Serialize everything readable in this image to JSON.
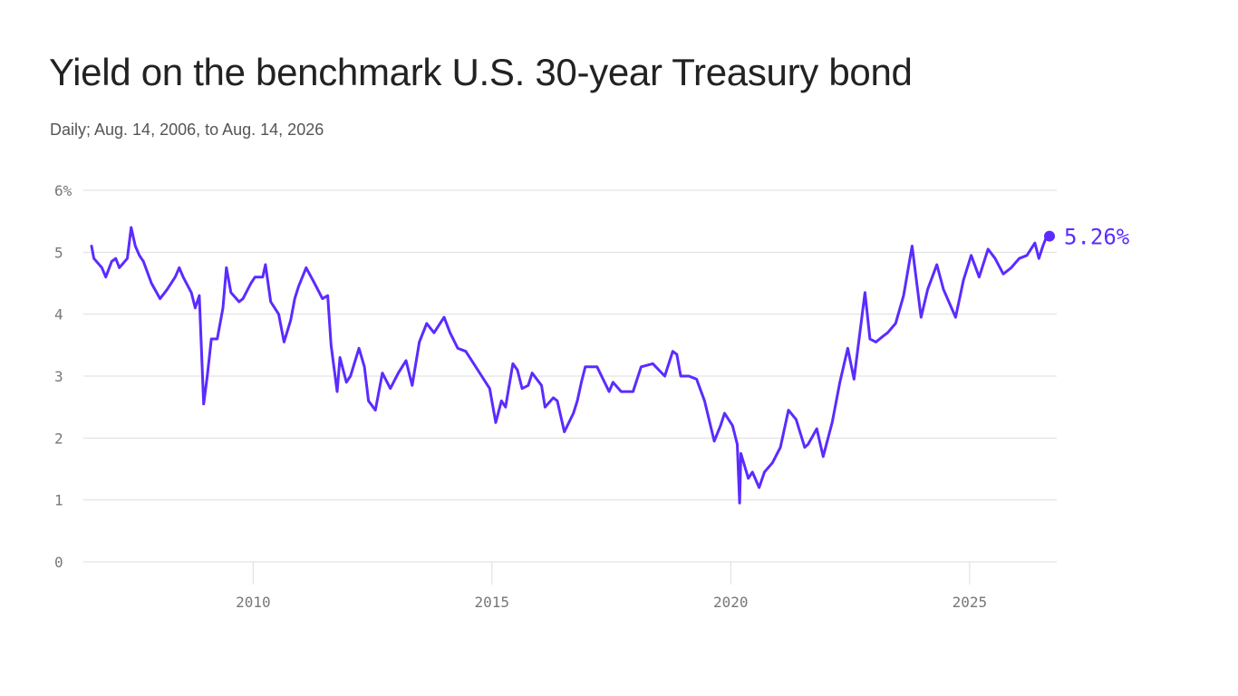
{
  "colors": {
    "accent": "#5b2bff",
    "grid": "#dddddd",
    "text": "#222222",
    "subtext": "#555555",
    "tick": "#777777"
  },
  "chart_data": {
    "type": "line",
    "title": "Yield on the benchmark U.S. 30-year Treasury bond",
    "subtitle": "Daily; Aug. 14, 2006, to Aug. 14, 2026",
    "xlabel": "",
    "ylabel": "",
    "xlim": [
      "2006-08-14",
      "2026-08-14"
    ],
    "ylim": [
      0,
      6
    ],
    "grid": true,
    "y_ticks": [
      {
        "value": 0,
        "label": "0"
      },
      {
        "value": 1,
        "label": "1"
      },
      {
        "value": 2,
        "label": "2"
      },
      {
        "value": 3,
        "label": "3"
      },
      {
        "value": 4,
        "label": "4"
      },
      {
        "value": 5,
        "label": "5"
      },
      {
        "value": 6,
        "label": "6%"
      }
    ],
    "x_ticks": [
      {
        "value": "2010-01-01",
        "label": "2010"
      },
      {
        "value": "2015-01-01",
        "label": "2015"
      },
      {
        "value": "2020-01-01",
        "label": "2020"
      },
      {
        "value": "2025-01-01",
        "label": "2025"
      }
    ],
    "end_label": "5.26%",
    "end_point": {
      "x": "2026-08-14",
      "y": 5.26
    },
    "series": [
      {
        "points": [
          [
            "2006-08-14",
            5.1
          ],
          [
            "2006-09-01",
            4.9
          ],
          [
            "2006-11-01",
            4.75
          ],
          [
            "2006-12-01",
            4.6
          ],
          [
            "2007-01-15",
            4.85
          ],
          [
            "2007-02-15",
            4.9
          ],
          [
            "2007-03-15",
            4.75
          ],
          [
            "2007-05-15",
            4.9
          ],
          [
            "2007-06-13",
            5.4
          ],
          [
            "2007-07-15",
            5.1
          ],
          [
            "2007-08-15",
            4.95
          ],
          [
            "2007-09-15",
            4.85
          ],
          [
            "2007-11-15",
            4.5
          ],
          [
            "2008-01-20",
            4.25
          ],
          [
            "2008-03-15",
            4.4
          ],
          [
            "2008-05-15",
            4.6
          ],
          [
            "2008-06-15",
            4.75
          ],
          [
            "2008-07-15",
            4.6
          ],
          [
            "2008-09-15",
            4.35
          ],
          [
            "2008-10-15",
            4.1
          ],
          [
            "2008-11-15",
            4.3
          ],
          [
            "2008-12-18",
            2.55
          ],
          [
            "2009-01-15",
            3.0
          ],
          [
            "2009-02-15",
            3.6
          ],
          [
            "2009-04-01",
            3.6
          ],
          [
            "2009-05-15",
            4.1
          ],
          [
            "2009-06-10",
            4.75
          ],
          [
            "2009-07-15",
            4.35
          ],
          [
            "2009-09-15",
            4.2
          ],
          [
            "2009-10-15",
            4.25
          ],
          [
            "2009-12-15",
            4.5
          ],
          [
            "2010-01-15",
            4.6
          ],
          [
            "2010-03-15",
            4.6
          ],
          [
            "2010-04-05",
            4.8
          ],
          [
            "2010-05-15",
            4.2
          ],
          [
            "2010-07-15",
            4.0
          ],
          [
            "2010-08-25",
            3.55
          ],
          [
            "2010-10-15",
            3.9
          ],
          [
            "2010-11-15",
            4.25
          ],
          [
            "2010-12-15",
            4.45
          ],
          [
            "2011-02-10",
            4.75
          ],
          [
            "2011-04-15",
            4.5
          ],
          [
            "2011-06-15",
            4.25
          ],
          [
            "2011-07-25",
            4.3
          ],
          [
            "2011-08-20",
            3.5
          ],
          [
            "2011-10-05",
            2.75
          ],
          [
            "2011-10-27",
            3.3
          ],
          [
            "2011-12-15",
            2.9
          ],
          [
            "2012-01-15",
            3.0
          ],
          [
            "2012-03-20",
            3.45
          ],
          [
            "2012-05-01",
            3.15
          ],
          [
            "2012-06-01",
            2.6
          ],
          [
            "2012-07-24",
            2.45
          ],
          [
            "2012-09-15",
            3.05
          ],
          [
            "2012-11-15",
            2.8
          ],
          [
            "2013-01-15",
            3.05
          ],
          [
            "2013-03-15",
            3.25
          ],
          [
            "2013-05-01",
            2.85
          ],
          [
            "2013-06-25",
            3.55
          ],
          [
            "2013-08-20",
            3.85
          ],
          [
            "2013-10-15",
            3.7
          ],
          [
            "2013-12-31",
            3.95
          ],
          [
            "2014-02-15",
            3.7
          ],
          [
            "2014-04-15",
            3.45
          ],
          [
            "2014-06-15",
            3.4
          ],
          [
            "2014-08-15",
            3.2
          ],
          [
            "2014-10-15",
            3.0
          ],
          [
            "2014-12-15",
            2.8
          ],
          [
            "2015-01-30",
            2.25
          ],
          [
            "2015-03-15",
            2.6
          ],
          [
            "2015-04-15",
            2.5
          ],
          [
            "2015-06-10",
            3.2
          ],
          [
            "2015-07-15",
            3.1
          ],
          [
            "2015-08-20",
            2.8
          ],
          [
            "2015-10-05",
            2.85
          ],
          [
            "2015-11-05",
            3.05
          ],
          [
            "2016-01-15",
            2.85
          ],
          [
            "2016-02-11",
            2.5
          ],
          [
            "2016-04-15",
            2.65
          ],
          [
            "2016-05-15",
            2.6
          ],
          [
            "2016-07-08",
            2.1
          ],
          [
            "2016-09-15",
            2.4
          ],
          [
            "2016-10-15",
            2.6
          ],
          [
            "2016-11-15",
            2.9
          ],
          [
            "2016-12-15",
            3.15
          ],
          [
            "2017-03-15",
            3.15
          ],
          [
            "2017-06-15",
            2.75
          ],
          [
            "2017-07-15",
            2.9
          ],
          [
            "2017-09-15",
            2.75
          ],
          [
            "2017-12-15",
            2.75
          ],
          [
            "2018-02-15",
            3.15
          ],
          [
            "2018-05-15",
            3.2
          ],
          [
            "2018-08-15",
            3.0
          ],
          [
            "2018-10-15",
            3.4
          ],
          [
            "2018-11-15",
            3.35
          ],
          [
            "2018-12-15",
            3.0
          ],
          [
            "2019-02-15",
            3.0
          ],
          [
            "2019-04-15",
            2.95
          ],
          [
            "2019-06-15",
            2.6
          ],
          [
            "2019-08-28",
            1.95
          ],
          [
            "2019-10-15",
            2.2
          ],
          [
            "2019-11-15",
            2.4
          ],
          [
            "2020-01-15",
            2.2
          ],
          [
            "2020-02-20",
            1.9
          ],
          [
            "2020-03-09",
            0.95
          ],
          [
            "2020-03-19",
            1.75
          ],
          [
            "2020-05-15",
            1.35
          ],
          [
            "2020-06-15",
            1.45
          ],
          [
            "2020-08-05",
            1.2
          ],
          [
            "2020-09-15",
            1.45
          ],
          [
            "2020-11-15",
            1.6
          ],
          [
            "2021-01-15",
            1.85
          ],
          [
            "2021-03-18",
            2.45
          ],
          [
            "2021-05-15",
            2.3
          ],
          [
            "2021-07-20",
            1.85
          ],
          [
            "2021-08-15",
            1.9
          ],
          [
            "2021-10-20",
            2.15
          ],
          [
            "2021-12-08",
            1.7
          ],
          [
            "2022-02-15",
            2.25
          ],
          [
            "2022-04-15",
            2.9
          ],
          [
            "2022-06-14",
            3.45
          ],
          [
            "2022-08-01",
            2.95
          ],
          [
            "2022-10-24",
            4.35
          ],
          [
            "2022-12-01",
            3.6
          ],
          [
            "2023-01-15",
            3.55
          ],
          [
            "2023-03-15",
            3.65
          ],
          [
            "2023-04-15",
            3.7
          ],
          [
            "2023-06-15",
            3.85
          ],
          [
            "2023-08-15",
            4.3
          ],
          [
            "2023-10-19",
            5.1
          ],
          [
            "2023-12-27",
            3.95
          ],
          [
            "2024-02-15",
            4.4
          ],
          [
            "2024-04-25",
            4.8
          ],
          [
            "2024-06-15",
            4.4
          ],
          [
            "2024-09-16",
            3.95
          ],
          [
            "2024-11-15",
            4.55
          ],
          [
            "2025-01-13",
            4.95
          ],
          [
            "2025-03-15",
            4.6
          ],
          [
            "2025-05-22",
            5.05
          ],
          [
            "2025-07-15",
            4.9
          ],
          [
            "2025-09-15",
            4.65
          ],
          [
            "2025-11-15",
            4.75
          ],
          [
            "2026-01-15",
            4.9
          ],
          [
            "2026-03-15",
            4.95
          ],
          [
            "2026-05-15",
            5.15
          ],
          [
            "2026-06-15",
            4.9
          ],
          [
            "2026-07-15",
            5.1
          ],
          [
            "2026-08-14",
            5.26
          ]
        ]
      }
    ]
  }
}
